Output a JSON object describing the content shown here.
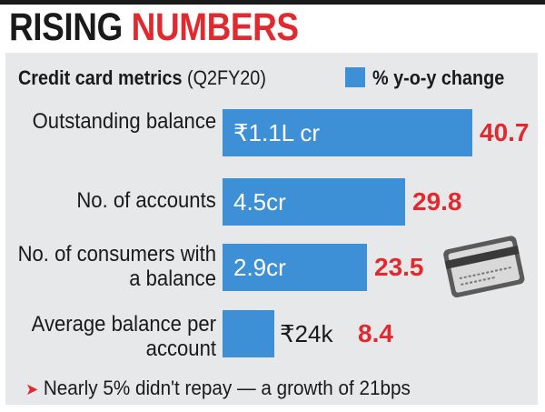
{
  "title": {
    "part1": "RISING",
    "part2": "NUMBERS"
  },
  "subtitle": {
    "main": "Credit card metrics",
    "period": "(Q2FY20)"
  },
  "legend": {
    "label": "% y-o-y change",
    "color": "#3d8fd6"
  },
  "colors": {
    "bar": "#3d8fd6",
    "accent": "#e02a2f",
    "panel": "#e7e8ea",
    "text": "#1a1a1a"
  },
  "footnote": "Nearly 5% didn't repay — a growth of 21bps",
  "icons": {
    "card": "credit-card-icon",
    "arrow": "arrowhead-icon"
  },
  "chart_data": {
    "type": "bar",
    "orientation": "horizontal",
    "categories": [
      "Outstanding balance",
      "No. of accounts",
      "No. of consumers with a balance",
      "Average balance per account"
    ],
    "values": [
      40.7,
      29.8,
      23.5,
      8.4
    ],
    "bar_labels": [
      "₹1.1L cr",
      "4.5cr",
      "2.9cr",
      "₹24k"
    ],
    "series": [
      {
        "name": "% y-o-y change",
        "values": [
          40.7,
          29.8,
          23.5,
          8.4
        ]
      }
    ],
    "xlim": [
      0,
      40.7
    ],
    "grid": false,
    "legend_position": "top-right"
  }
}
